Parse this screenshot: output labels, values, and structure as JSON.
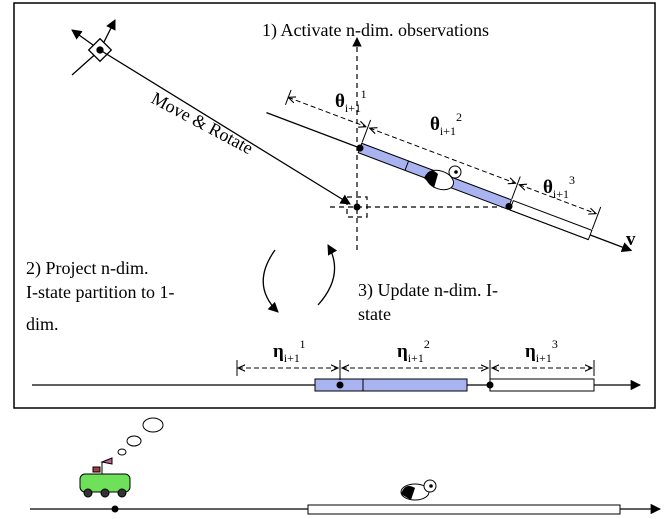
{
  "step1": "1) Activate n-dim. observations",
  "move": "Move & Rotate",
  "step2": {
    "lines": [
      "2) Project n-dim.",
      "I-state partition to 1-",
      "dim."
    ]
  },
  "step3": {
    "lines": [
      "3) Update n-dim. I-",
      "state"
    ]
  },
  "theta": [
    {
      "symbol": "θ",
      "subscript": "i+1",
      "superscript": "1"
    },
    {
      "symbol": "θ",
      "subscript": "i+1",
      "superscript": "2"
    },
    {
      "symbol": "θ",
      "subscript": "i+1",
      "superscript": "3"
    }
  ],
  "eta": [
    {
      "symbol": "η",
      "subscript": "i+1",
      "superscript": "1"
    },
    {
      "symbol": "η",
      "subscript": "i+1",
      "superscript": "2"
    },
    {
      "symbol": "η",
      "subscript": "i+1",
      "superscript": "3"
    }
  ],
  "velocity": "v"
}
